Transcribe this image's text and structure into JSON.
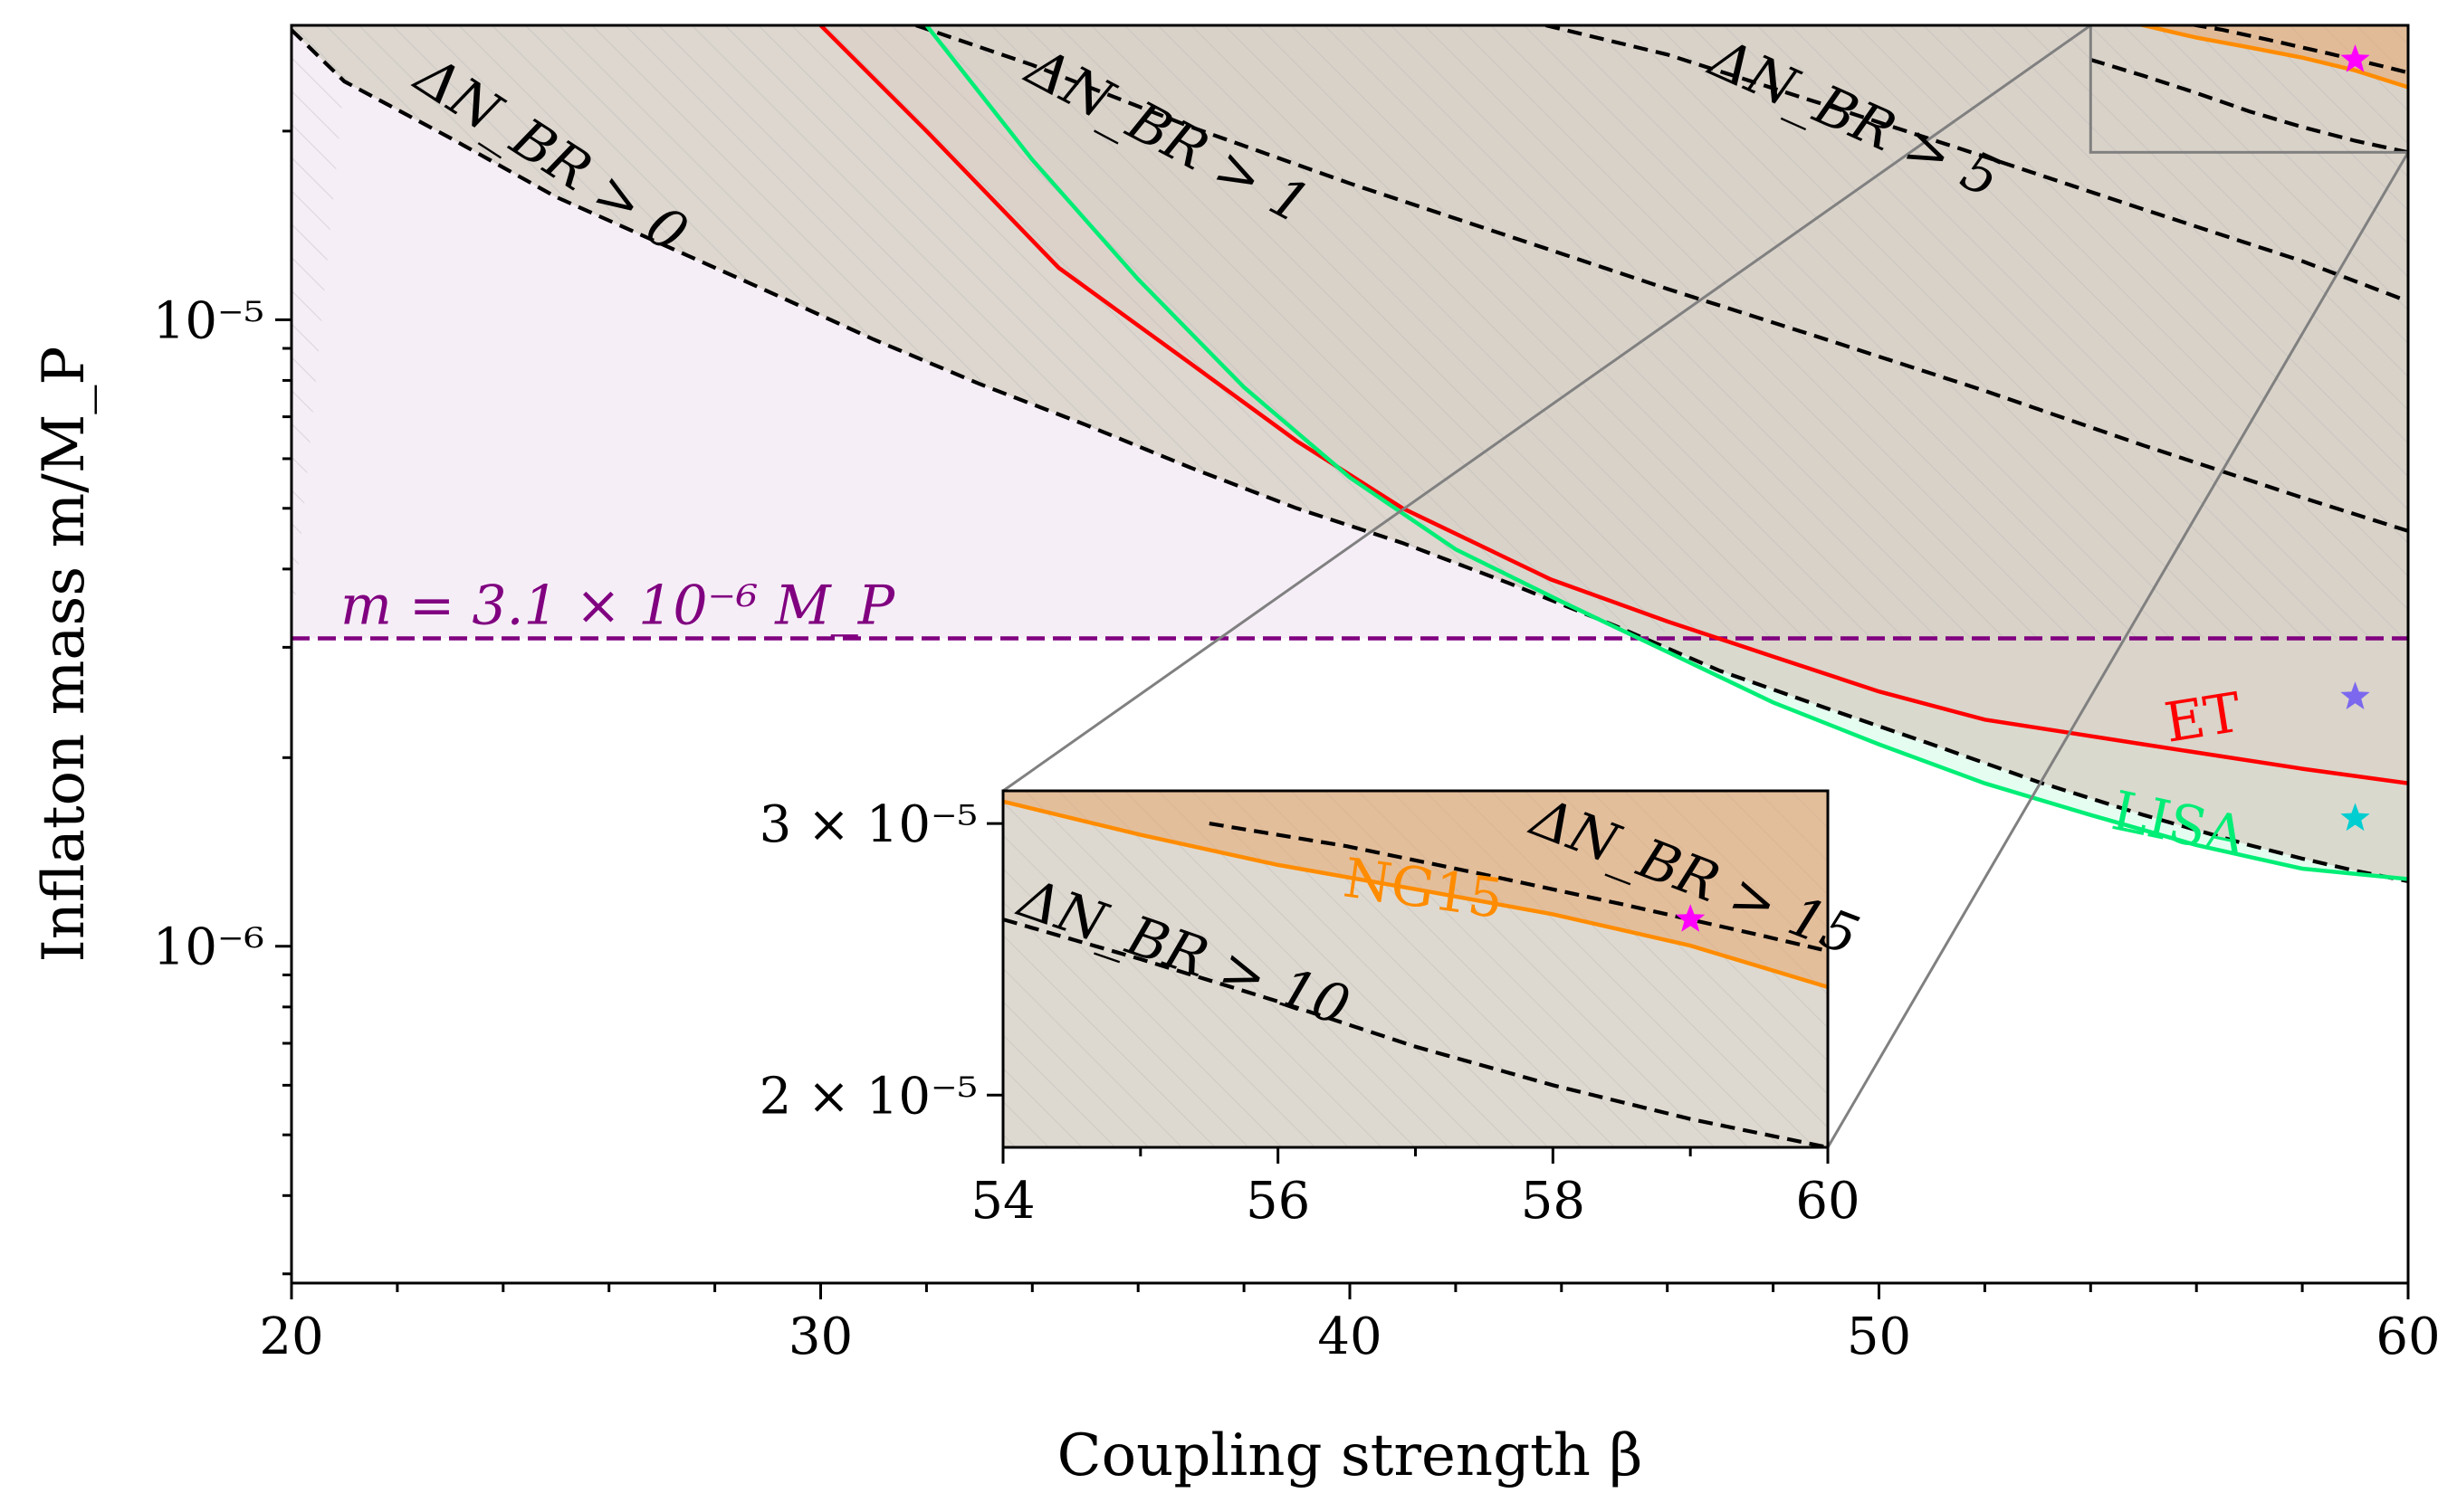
{
  "chart_data": {
    "type": "line",
    "xlabel": "Coupling strength  β",
    "ylabel": "Inflaton mass  m/M_P",
    "xlim": [
      20,
      60
    ],
    "ylim_log": [
      2.9e-07,
      2.95e-05
    ],
    "x_ticks": [
      20,
      30,
      40,
      50,
      60
    ],
    "x_tick_labels": [
      "20",
      "30",
      "40",
      "50",
      "60"
    ],
    "y_ticks": [
      1e-06,
      1e-05
    ],
    "y_tick_labels": [
      "10⁻⁶",
      "10⁻⁵"
    ],
    "mass_line": {
      "value": 3.1e-06,
      "label": "m = 3.1 × 10⁻⁶ M_P",
      "color": "#800080"
    },
    "dashed_contours": [
      {
        "name": "ΔN_BR > 0",
        "label": "ΔN_BR > 0",
        "x": [
          20,
          21,
          23,
          25,
          27,
          29,
          31,
          33,
          35,
          37,
          39,
          41,
          43,
          45,
          47,
          49,
          51,
          53,
          55,
          57,
          58,
          59,
          60
        ],
        "y": [
          2.9e-05,
          2.4e-05,
          1.95e-05,
          1.57e-05,
          1.32e-05,
          1.11e-05,
          9.3e-06,
          7.9e-06,
          6.8e-06,
          5.8e-06,
          5e-06,
          4.4e-06,
          3.8e-06,
          3.25e-06,
          2.75e-06,
          2.4e-06,
          2.1e-06,
          1.83e-06,
          1.62e-06,
          1.45e-06,
          1.38e-06,
          1.32e-06,
          1.27e-06
        ]
      },
      {
        "name": "ΔN_BR > 1",
        "label": "ΔN_BR > 1",
        "x": [
          31.8,
          34,
          37,
          40,
          43,
          46,
          49,
          52,
          55,
          58,
          60
        ],
        "y": [
          2.95e-05,
          2.55e-05,
          2.03e-05,
          1.65e-05,
          1.36e-05,
          1.12e-05,
          9.3e-06,
          7.7e-06,
          6.3e-06,
          5.2e-06,
          4.6e-06
        ]
      },
      {
        "name": "ΔN_BR > 5",
        "label": "ΔN_BR > 5",
        "x": [
          43.7,
          46,
          49,
          52,
          55,
          58,
          60
        ],
        "y": [
          2.95e-05,
          2.65e-05,
          2.2e-05,
          1.82e-05,
          1.5e-05,
          1.24e-05,
          1.07e-05
        ]
      },
      {
        "name": "ΔN_BR > 10",
        "label": "ΔN_BR > 10",
        "x": [
          54,
          55,
          56,
          57,
          58,
          59,
          60
        ],
        "y": [
          2.6e-05,
          2.45e-05,
          2.3e-05,
          2.15e-05,
          2.03e-05,
          1.93e-05,
          1.85e-05
        ]
      },
      {
        "name": "ΔN_BR > 15",
        "label": "ΔN_BR > 15",
        "x": [
          55.5,
          56.5,
          57.5,
          58.5,
          59.5,
          60
        ],
        "y": [
          3e-05,
          2.9e-05,
          2.78e-05,
          2.66e-05,
          2.54e-05,
          2.48e-05
        ]
      }
    ],
    "series": [
      {
        "name": "ET",
        "color": "#ff0000",
        "x": [
          30,
          32,
          34.5,
          37,
          39,
          41,
          43.8,
          46,
          48,
          50,
          52,
          55,
          58,
          60
        ],
        "y": [
          2.95e-05,
          2e-05,
          1.21e-05,
          8.5e-06,
          6.4e-06,
          5e-06,
          3.85e-06,
          3.3e-06,
          2.9e-06,
          2.55e-06,
          2.3e-06,
          2.1e-06,
          1.92e-06,
          1.82e-06
        ]
      },
      {
        "name": "LISA",
        "color": "#00ee76",
        "x": [
          32,
          34,
          36,
          38,
          40,
          42,
          44,
          46,
          48,
          50,
          52,
          54,
          56,
          58,
          60
        ],
        "y": [
          2.95e-05,
          1.8e-05,
          1.16e-05,
          7.8e-06,
          5.6e-06,
          4.3e-06,
          3.55e-06,
          2.95e-06,
          2.45e-06,
          2.1e-06,
          1.82e-06,
          1.62e-06,
          1.45e-06,
          1.33e-06,
          1.28e-06
        ]
      },
      {
        "name": "NG15",
        "color": "#ff8c00",
        "x": [
          54,
          55,
          56,
          57,
          58,
          59,
          60
        ],
        "y": [
          3.1e-05,
          2.95e-05,
          2.82e-05,
          2.72e-05,
          2.62e-05,
          2.5e-05,
          2.35e-05
        ]
      }
    ],
    "series_labels": {
      "ET": "ET",
      "LISA": "LISA",
      "NG15": "NG15"
    },
    "markers": [
      {
        "name": "NG15 star",
        "x": 59,
        "y": 2.6e-05,
        "color": "#ff00ff"
      },
      {
        "name": "ET star",
        "x": 59,
        "y": 2.5e-06,
        "color": "#7b68ee"
      },
      {
        "name": "LISA star",
        "x": 59,
        "y": 1.6e-06,
        "color": "#00ced1"
      }
    ],
    "inset": {
      "xlim": [
        54,
        60
      ],
      "ylim_log": [
        1.85e-05,
        3.15e-05
      ],
      "x_ticks": [
        54,
        56,
        58,
        60
      ],
      "x_tick_labels": [
        "54",
        "56",
        "58",
        "60"
      ],
      "y_ticks": [
        2e-05,
        3e-05
      ],
      "y_tick_labels": [
        "2 × 10⁻⁵",
        "3 × 10⁻⁵"
      ]
    }
  }
}
